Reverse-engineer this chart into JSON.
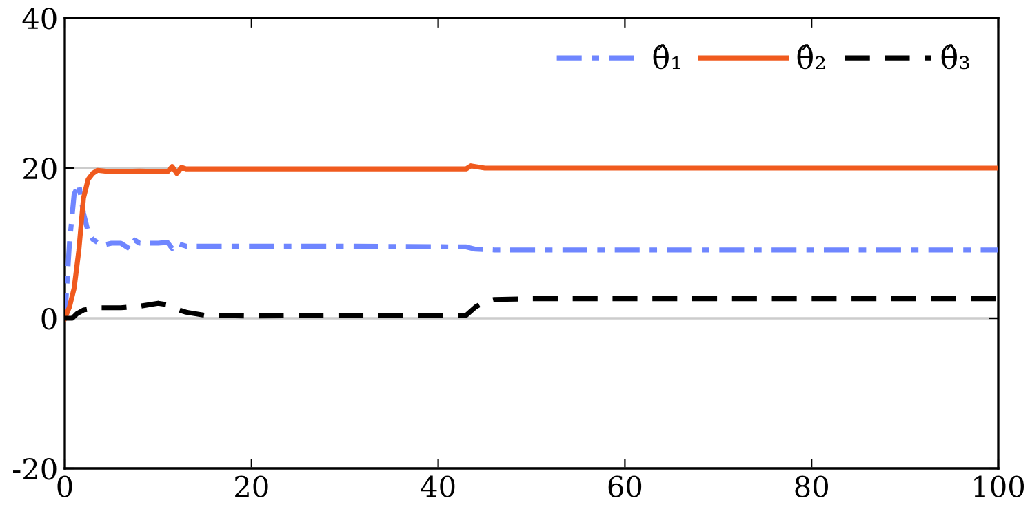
{
  "chart_data": {
    "type": "line",
    "xlim": [
      0,
      100
    ],
    "ylim": [
      -20,
      40
    ],
    "xticks": [
      0,
      20,
      40,
      60,
      80,
      100
    ],
    "yticks": [
      -20,
      0,
      20,
      40
    ],
    "grid": "y",
    "legend": "top right",
    "series": [
      {
        "name": "θ̂₁",
        "color": "#6f86ff",
        "line_style": "dashdot",
        "x": [
          0,
          0.5,
          1,
          1.5,
          2,
          2.5,
          3,
          4,
          5,
          6,
          7,
          7.5,
          8,
          10,
          11,
          11.5,
          12,
          13,
          20,
          30,
          43,
          44,
          46,
          60,
          80,
          100
        ],
        "values": [
          0,
          10,
          16.5,
          17.9,
          14,
          11.5,
          10.5,
          9.7,
          10,
          10,
          9.2,
          10.4,
          10,
          10,
          10.1,
          9.3,
          10,
          9.6,
          9.6,
          9.6,
          9.5,
          9.2,
          9.1,
          9.1,
          9.1,
          9.1
        ]
      },
      {
        "name": "θ̂₂",
        "color": "#f05a1e",
        "line_style": "solid",
        "x": [
          0,
          0.5,
          1,
          1.5,
          2,
          2.5,
          3,
          3.5,
          5,
          8,
          11,
          11.5,
          12,
          12.5,
          13,
          20,
          30,
          43,
          43.5,
          45,
          60,
          80,
          100
        ],
        "values": [
          0,
          1.5,
          4,
          9,
          16,
          18.5,
          19.3,
          19.7,
          19.5,
          19.6,
          19.5,
          20.2,
          19.3,
          20.1,
          19.9,
          19.9,
          19.9,
          19.9,
          20.3,
          20.0,
          20.0,
          20.0,
          20.0
        ]
      },
      {
        "name": "θ̂₃",
        "color": "#000000",
        "line_style": "dashed",
        "x": [
          0,
          0.8,
          1.3,
          2,
          3.5,
          6,
          8,
          10,
          11,
          12,
          13,
          15,
          20,
          30,
          43,
          44,
          45,
          46,
          50,
          60,
          80,
          100
        ],
        "values": [
          0,
          0,
          0.6,
          1.1,
          1.4,
          1.4,
          1.6,
          2.0,
          1.8,
          1.2,
          0.8,
          0.4,
          0.3,
          0.4,
          0.4,
          1.5,
          2.2,
          2.5,
          2.6,
          2.6,
          2.6,
          2.6
        ]
      }
    ]
  }
}
